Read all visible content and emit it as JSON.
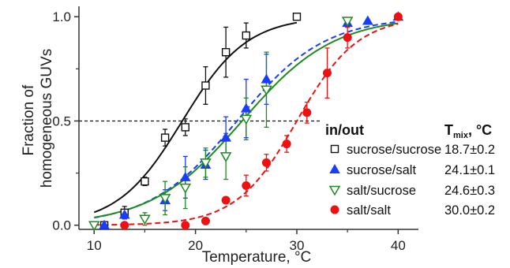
{
  "chart_data": {
    "type": "scatter",
    "title": "",
    "xlabel": "Temperature, °C",
    "ylabel": [
      "Fraction of",
      "homogeneous GUVs"
    ],
    "xlim": [
      8.5,
      42
    ],
    "ylim": [
      -0.02,
      1.05
    ],
    "xticks": [
      10,
      20,
      30,
      40
    ],
    "yticks": [
      0.0,
      0.5,
      1.0
    ],
    "ytick_labels": [
      "0.0",
      "0.5",
      "1.0"
    ],
    "grid": false,
    "reference_line_y": 0.5,
    "legend": {
      "placement": "center-right",
      "header_left": "in/out",
      "header_right_main": "T",
      "header_right_sub": "mix",
      "header_right_tail": ", °C"
    },
    "series": [
      {
        "name": "sucrose/sucrose",
        "tmix_label": "18.7±0.2",
        "tmix": 18.7,
        "width": 3.2,
        "marker": "open-square",
        "color": "#111111",
        "fit_style": "solid",
        "fit_color": "#111111",
        "x": [
          11,
          13,
          15,
          17,
          19,
          21,
          23,
          25,
          30
        ],
        "y": [
          0.0,
          0.06,
          0.21,
          0.42,
          0.47,
          0.67,
          0.83,
          0.91,
          1.0
        ],
        "err": [
          0.0,
          0.03,
          0.02,
          0.04,
          0.04,
          0.09,
          0.12,
          0.06,
          0.0
        ]
      },
      {
        "name": "sucrose/salt",
        "tmix_label": "24.1±0.1",
        "tmix": 24.1,
        "width": 4.3,
        "marker": "filled-triangle-up",
        "color": "#1a3cff",
        "fit_style": "dashed",
        "fit_color": "#1a3cff",
        "x": [
          11,
          13,
          17,
          19,
          21,
          23,
          25,
          27,
          35,
          37,
          40
        ],
        "y": [
          0.0,
          0.05,
          0.12,
          0.23,
          0.29,
          0.42,
          0.56,
          0.7,
          0.97,
          0.98,
          1.0
        ],
        "err": [
          0.0,
          0.02,
          0.05,
          0.1,
          0.07,
          0.1,
          0.14,
          0.12,
          0.02,
          0.0,
          0.0
        ]
      },
      {
        "name": "salt/sucrose",
        "tmix_label": "24.6±0.3",
        "tmix": 24.6,
        "width": 4.5,
        "marker": "open-triangle-down",
        "color": "#1f8a1f",
        "fit_style": "solid",
        "fit_color": "#1f8a1f",
        "x": [
          10,
          15,
          17,
          19,
          21,
          23,
          25,
          27,
          35
        ],
        "y": [
          0.0,
          0.03,
          0.13,
          0.18,
          0.3,
          0.33,
          0.51,
          0.65,
          0.98
        ],
        "err": [
          0.0,
          0.03,
          0.08,
          0.1,
          0.07,
          0.11,
          0.1,
          0.18,
          0.0
        ]
      },
      {
        "name": "salt/salt",
        "tmix_label": "30.0±0.2",
        "tmix": 30.0,
        "width": 3.0,
        "marker": "filled-circle",
        "color": "#ee1111",
        "fit_style": "dashed",
        "fit_color": "#ee1111",
        "x": [
          13,
          19,
          21,
          23,
          25,
          27,
          29,
          31,
          33,
          35,
          40
        ],
        "y": [
          0.0,
          0.0,
          0.02,
          0.12,
          0.19,
          0.3,
          0.39,
          0.54,
          0.73,
          0.9,
          1.0
        ],
        "err": [
          0.0,
          0.0,
          0.0,
          0.0,
          0.05,
          0.04,
          0.04,
          0.05,
          0.12,
          0.05,
          0.0
        ]
      }
    ]
  }
}
